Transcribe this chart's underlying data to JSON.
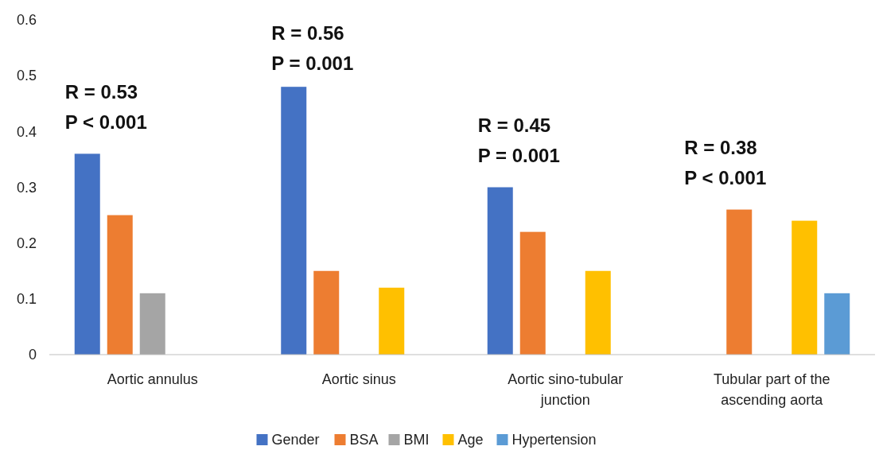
{
  "chart_data": {
    "type": "bar",
    "categories": [
      "Aortic annulus",
      "Aortic sinus",
      "Aortic sino-tubular junction",
      "Tubular part of the ascending aorta"
    ],
    "series": [
      {
        "name": "Gender",
        "color": "#4472c4",
        "values": [
          0.36,
          0.48,
          0.3,
          null
        ]
      },
      {
        "name": "BSA",
        "color": "#ed7d31",
        "values": [
          0.25,
          0.15,
          0.22,
          0.26
        ]
      },
      {
        "name": "BMI",
        "color": "#a5a5a5",
        "values": [
          0.11,
          null,
          null,
          null
        ]
      },
      {
        "name": "Age",
        "color": "#ffc000",
        "values": [
          null,
          0.12,
          0.15,
          0.24
        ]
      },
      {
        "name": "Hypertension",
        "color": "#5b9bd5",
        "values": [
          null,
          null,
          null,
          0.11
        ]
      }
    ],
    "ylim": [
      0,
      0.6
    ],
    "yticks": [
      {
        "value": 0,
        "label": "0"
      },
      0.1,
      0.2,
      0.3,
      0.4,
      0.5,
      0.6
    ],
    "grid": false,
    "legend": "bottom",
    "annotations": [
      "R = 0.53",
      "P < 0.001",
      "R = 0.56",
      "P = 0.001",
      "R = 0.45",
      "P = 0.001",
      "R = 0.38",
      "P < 0.001"
    ]
  }
}
